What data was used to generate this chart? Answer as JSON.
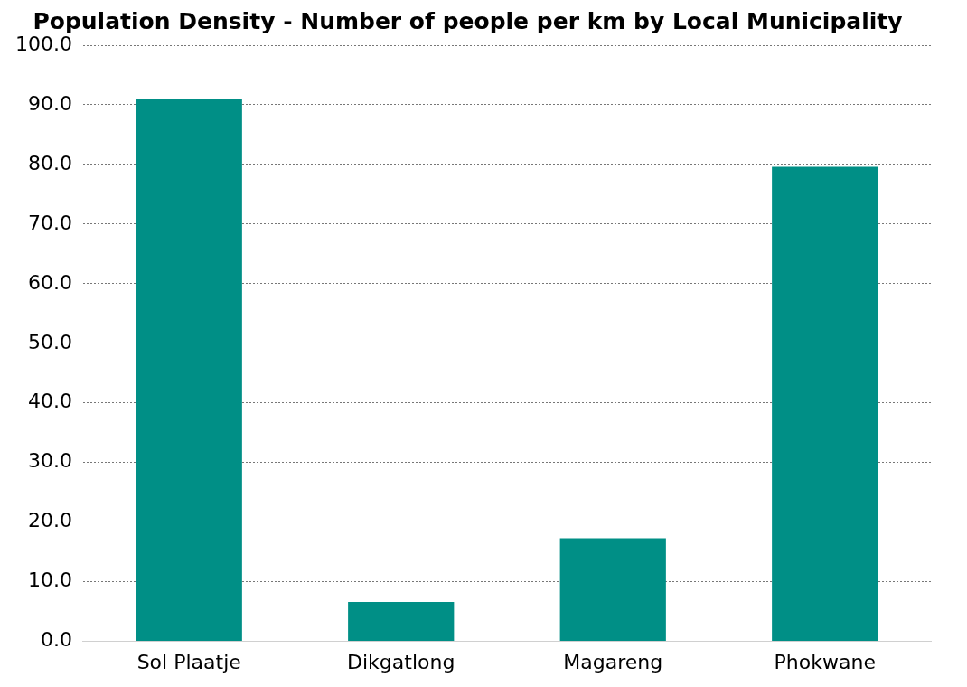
{
  "chart_data": {
    "type": "bar",
    "title": "Population Density - Number of people per km by Local Municipality",
    "categories": [
      "Sol Plaatje",
      "Dikgatlong",
      "Magareng",
      "Phokwane"
    ],
    "values": [
      91.0,
      6.6,
      17.3,
      79.6
    ],
    "color": "#008f86",
    "ylim": [
      0,
      100
    ],
    "yticks": [
      {
        "value": 0,
        "label": "0.0"
      },
      {
        "value": 10,
        "label": "10.0"
      },
      {
        "value": 20,
        "label": "20.0"
      },
      {
        "value": 30,
        "label": "30.0"
      },
      {
        "value": 40,
        "label": "40.0"
      },
      {
        "value": 50,
        "label": "50.0"
      },
      {
        "value": 60,
        "label": "60.0"
      },
      {
        "value": 70,
        "label": "70.0"
      },
      {
        "value": 80,
        "label": "80.0"
      },
      {
        "value": 90,
        "label": "90.0"
      },
      {
        "value": 100,
        "label": "100.0"
      }
    ],
    "grid": "y"
  }
}
